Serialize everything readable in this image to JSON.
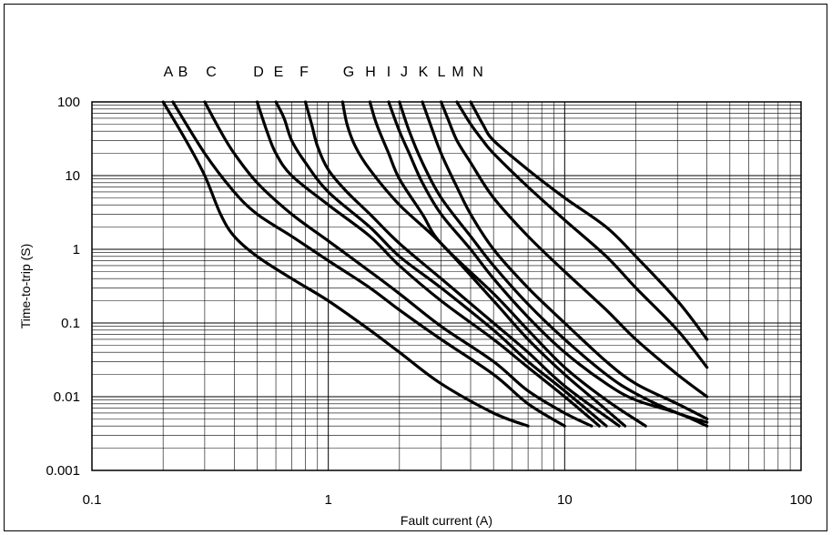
{
  "chart_data": {
    "type": "line",
    "title": "",
    "xlabel": "Fault current (A)",
    "ylabel": "Time-to-trip (S)",
    "x_scale": "log",
    "y_scale": "log",
    "xlim": [
      0.1,
      100
    ],
    "ylim": [
      0.001,
      100
    ],
    "x_ticks": [
      "0.1",
      "1",
      "10",
      "100"
    ],
    "y_ticks": [
      "0.001",
      "0.01",
      "0.1",
      "1",
      "10",
      "100"
    ],
    "grid": true,
    "line_color": "#000000",
    "series": [
      {
        "name": "A",
        "x": [
          0.2,
          0.25,
          0.3,
          0.35,
          0.4,
          0.5,
          0.7,
          1,
          1.5,
          2,
          3,
          5,
          7
        ],
        "y": [
          100,
          30,
          10,
          3,
          1.5,
          0.8,
          0.4,
          0.2,
          0.08,
          0.04,
          0.015,
          0.006,
          0.004
        ]
      },
      {
        "name": "B",
        "x": [
          0.22,
          0.3,
          0.4,
          0.5,
          0.7,
          1,
          1.5,
          2,
          3,
          5,
          7,
          10
        ],
        "y": [
          100,
          20,
          6,
          3,
          1.5,
          0.7,
          0.3,
          0.15,
          0.06,
          0.02,
          0.008,
          0.004
        ]
      },
      {
        "name": "C",
        "x": [
          0.3,
          0.35,
          0.4,
          0.5,
          0.7,
          1,
          1.5,
          2,
          3,
          5,
          7,
          10,
          13
        ],
        "y": [
          100,
          40,
          20,
          8,
          3,
          1.3,
          0.5,
          0.25,
          0.09,
          0.03,
          0.012,
          0.006,
          0.004
        ]
      },
      {
        "name": "D",
        "x": [
          0.5,
          0.55,
          0.6,
          0.7,
          1,
          1.5,
          2,
          3,
          5,
          7,
          10,
          14
        ],
        "y": [
          100,
          40,
          20,
          10,
          4,
          1.5,
          0.6,
          0.2,
          0.06,
          0.025,
          0.01,
          0.004
        ]
      },
      {
        "name": "E",
        "x": [
          0.6,
          0.65,
          0.7,
          0.8,
          1,
          1.5,
          2,
          3,
          5,
          7,
          10,
          15
        ],
        "y": [
          100,
          60,
          30,
          15,
          6,
          2,
          0.8,
          0.3,
          0.08,
          0.03,
          0.012,
          0.004
        ]
      },
      {
        "name": "F",
        "x": [
          0.8,
          0.85,
          0.9,
          1,
          1.2,
          1.5,
          2,
          3,
          5,
          7,
          10,
          17
        ],
        "y": [
          100,
          50,
          25,
          12,
          6,
          3,
          1.2,
          0.4,
          0.1,
          0.04,
          0.014,
          0.004
        ]
      },
      {
        "name": "G",
        "x": [
          1.15,
          1.2,
          1.3,
          1.5,
          2,
          3,
          5,
          7,
          10,
          14,
          18
        ],
        "y": [
          100,
          50,
          25,
          12,
          4,
          1.2,
          0.2,
          0.06,
          0.02,
          0.008,
          0.004
        ]
      },
      {
        "name": "H",
        "x": [
          1.5,
          1.6,
          1.8,
          2,
          2.5,
          3,
          5,
          7,
          10,
          15,
          22
        ],
        "y": [
          100,
          50,
          20,
          9,
          3,
          1.2,
          0.25,
          0.08,
          0.025,
          0.009,
          0.004
        ]
      },
      {
        "name": "I",
        "x": [
          1.8,
          2,
          2.2,
          2.5,
          3,
          4,
          5,
          7,
          10,
          15,
          20,
          30,
          40
        ],
        "y": [
          100,
          40,
          20,
          8,
          3,
          1,
          0.4,
          0.12,
          0.04,
          0.015,
          0.009,
          0.006,
          0.004
        ]
      },
      {
        "name": "J",
        "x": [
          2,
          2.2,
          2.5,
          3,
          4,
          5,
          7,
          10,
          15,
          20,
          30,
          40
        ],
        "y": [
          100,
          40,
          15,
          5,
          1.5,
          0.6,
          0.18,
          0.06,
          0.02,
          0.011,
          0.006,
          0.0045
        ]
      },
      {
        "name": "K",
        "x": [
          2.5,
          2.7,
          3,
          3.5,
          4,
          5,
          7,
          10,
          15,
          20,
          30,
          40
        ],
        "y": [
          100,
          50,
          20,
          7,
          3,
          1,
          0.3,
          0.1,
          0.03,
          0.015,
          0.008,
          0.005
        ]
      },
      {
        "name": "L",
        "x": [
          3,
          3.2,
          3.5,
          4,
          5,
          7,
          10,
          15,
          20,
          30,
          40
        ],
        "y": [
          100,
          60,
          30,
          15,
          5,
          1.5,
          0.5,
          0.15,
          0.06,
          0.02,
          0.01
        ]
      },
      {
        "name": "M",
        "x": [
          3.5,
          4,
          4.5,
          5,
          7,
          10,
          15,
          20,
          30,
          40
        ],
        "y": [
          100,
          50,
          30,
          20,
          7,
          2.5,
          0.8,
          0.3,
          0.08,
          0.025
        ]
      },
      {
        "name": "N",
        "x": [
          4,
          4.5,
          5,
          7,
          10,
          15,
          20,
          30,
          40
        ],
        "y": [
          100,
          50,
          30,
          12,
          5,
          2,
          0.8,
          0.2,
          0.06
        ]
      }
    ]
  }
}
